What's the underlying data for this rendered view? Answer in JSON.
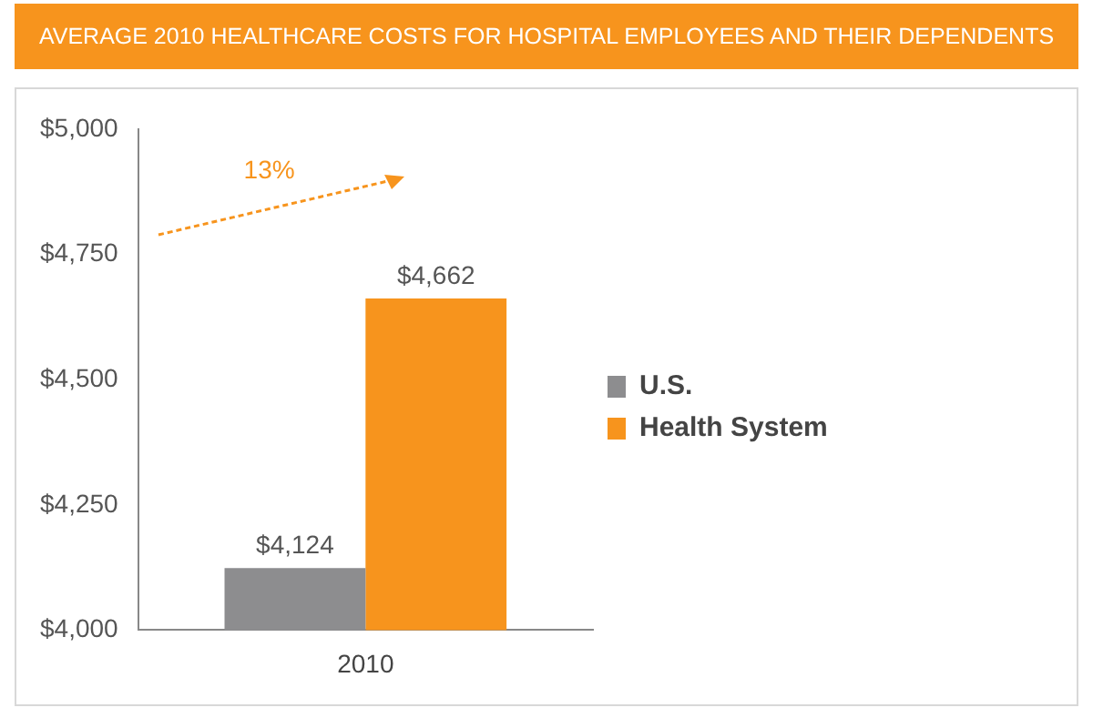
{
  "chart_data": {
    "type": "bar",
    "title": "AVERAGE 2010 HEALTHCARE COSTS FOR HOSPITAL EMPLOYEES AND THEIR DEPENDENTS",
    "categories": [
      "2010"
    ],
    "series": [
      {
        "name": "U.S.",
        "color": "#8d8d8f",
        "values": [
          4124
        ],
        "value_labels": [
          "$4,124"
        ]
      },
      {
        "name": "Health System",
        "color": "#f7941d",
        "values": [
          4662
        ],
        "value_labels": [
          "$4,662"
        ]
      }
    ],
    "ylim": [
      4000,
      5000
    ],
    "yticks": [
      {
        "value": 4000,
        "label": "$4,000"
      },
      {
        "value": 4250,
        "label": "$4,250"
      },
      {
        "value": 4500,
        "label": "$4,500"
      },
      {
        "value": 4750,
        "label": "$4,750"
      },
      {
        "value": 5000,
        "label": "$5,000"
      }
    ],
    "grid": false,
    "legend": "right",
    "annotations": [
      "13%"
    ]
  }
}
